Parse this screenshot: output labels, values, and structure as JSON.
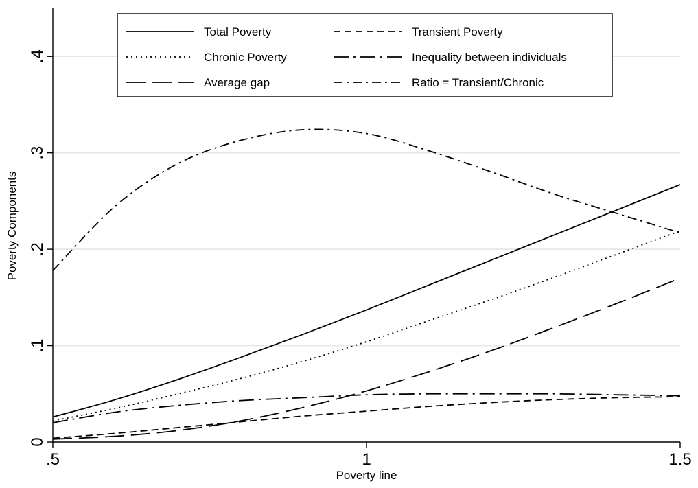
{
  "chart_data": {
    "type": "line",
    "title": "",
    "xlabel": "Poverty line",
    "ylabel": "Poverty Components",
    "xlim": [
      0.5,
      1.5
    ],
    "ylim": [
      0,
      0.45
    ],
    "x_ticks": [
      {
        "value": 0.5,
        "label": ".5"
      },
      {
        "value": 1.0,
        "label": "1"
      },
      {
        "value": 1.5,
        "label": "1.5"
      }
    ],
    "y_ticks": [
      {
        "value": 0,
        "label": "0"
      },
      {
        "value": 0.1,
        "label": ".1"
      },
      {
        "value": 0.2,
        "label": ".2"
      },
      {
        "value": 0.3,
        "label": ".3"
      },
      {
        "value": 0.4,
        "label": ".4"
      }
    ],
    "grid": "horizontal",
    "legend_position": "top",
    "x": [
      0.5,
      0.6,
      0.7,
      0.8,
      0.9,
      1.0,
      1.1,
      1.2,
      1.3,
      1.4,
      1.5
    ],
    "series": [
      {
        "name": "Total Poverty",
        "style": "solid",
        "values": [
          0.026,
          0.044,
          0.065,
          0.088,
          0.112,
          0.137,
          0.163,
          0.189,
          0.215,
          0.241,
          0.267
        ]
      },
      {
        "name": "Transient Poverty",
        "style": "dashed",
        "values": [
          0.004,
          0.009,
          0.015,
          0.021,
          0.027,
          0.032,
          0.037,
          0.041,
          0.044,
          0.046,
          0.047
        ]
      },
      {
        "name": "Chronic Poverty",
        "style": "dotted",
        "values": [
          0.022,
          0.035,
          0.05,
          0.066,
          0.084,
          0.104,
          0.126,
          0.148,
          0.171,
          0.195,
          0.219
        ]
      },
      {
        "name": "Inequality between individuals",
        "style": "long-dash-dot",
        "values": [
          0.02,
          0.031,
          0.038,
          0.043,
          0.046,
          0.049,
          0.05,
          0.05,
          0.05,
          0.049,
          0.048
        ]
      },
      {
        "name": "Average gap",
        "style": "long-dash",
        "values": [
          0.003,
          0.006,
          0.012,
          0.022,
          0.036,
          0.053,
          0.073,
          0.095,
          0.119,
          0.144,
          0.17
        ]
      },
      {
        "name": "Ratio = Transient/Chronic",
        "style": "dash-dot",
        "values": [
          0.178,
          0.245,
          0.289,
          0.313,
          0.324,
          0.32,
          0.302,
          0.28,
          0.257,
          0.237,
          0.217
        ]
      }
    ]
  }
}
